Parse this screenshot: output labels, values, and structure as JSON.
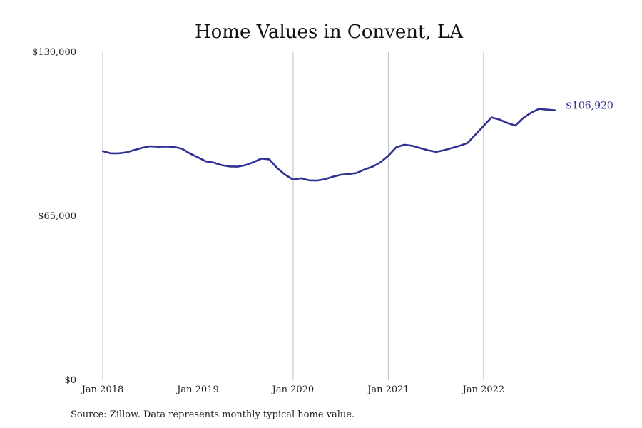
{
  "chart_data": {
    "type": "line",
    "title": "Home Values in Convent, LA",
    "source": "Source: Zillow. Data represents monthly typical home value.",
    "xlabel": "",
    "ylabel": "",
    "x_ticks": [
      {
        "date": "2018-01",
        "label": "Jan 2018"
      },
      {
        "date": "2019-01",
        "label": "Jan 2019"
      },
      {
        "date": "2020-01",
        "label": "Jan 2020"
      },
      {
        "date": "2021-01",
        "label": "Jan 2021"
      },
      {
        "date": "2022-01",
        "label": "Jan 2022"
      }
    ],
    "y_ticks": [
      {
        "value": 0,
        "label": "$0"
      },
      {
        "value": 65000,
        "label": "$65,000"
      },
      {
        "value": 130000,
        "label": "$130,000"
      }
    ],
    "ylim": [
      0,
      130000
    ],
    "xlim": [
      "2018-01",
      "2022-10"
    ],
    "vertical_grid": true,
    "horizontal_grid": false,
    "line_color": "#2e3192",
    "end_label": "$106,920",
    "series": [
      {
        "x": [
          "2018-01",
          "2018-02",
          "2018-03",
          "2018-04",
          "2018-05",
          "2018-06",
          "2018-07",
          "2018-08",
          "2018-09",
          "2018-10",
          "2018-11",
          "2018-12",
          "2019-01",
          "2019-02",
          "2019-03",
          "2019-04",
          "2019-05",
          "2019-06",
          "2019-07",
          "2019-08",
          "2019-09",
          "2019-10",
          "2019-11",
          "2019-12",
          "2020-01",
          "2020-02",
          "2020-03",
          "2020-04",
          "2020-05",
          "2020-06",
          "2020-07",
          "2020-08",
          "2020-09",
          "2020-10",
          "2020-11",
          "2020-12",
          "2021-01",
          "2021-02",
          "2021-03",
          "2021-04",
          "2021-05",
          "2021-06",
          "2021-07",
          "2021-08",
          "2021-09",
          "2021-10",
          "2021-11",
          "2021-12",
          "2022-01",
          "2022-02",
          "2022-03",
          "2022-04",
          "2022-05",
          "2022-06",
          "2022-07",
          "2022-08",
          "2022-09",
          "2022-10"
        ],
        "values": [
          90800,
          89900,
          89900,
          90300,
          91200,
          92100,
          92700,
          92500,
          92600,
          92400,
          91700,
          89800,
          88300,
          86700,
          86200,
          85200,
          84700,
          84600,
          85200,
          86400,
          87800,
          87500,
          84000,
          81400,
          79500,
          80000,
          79200,
          79100,
          79600,
          80600,
          81400,
          81700,
          82100,
          83500,
          84600,
          86300,
          88900,
          92300,
          93300,
          92900,
          92000,
          91100,
          90500,
          91100,
          92000,
          92900,
          94000,
          97400,
          100700,
          104100,
          103300,
          101900,
          100900,
          103900,
          106000,
          107500,
          107200,
          106920
        ]
      }
    ]
  }
}
